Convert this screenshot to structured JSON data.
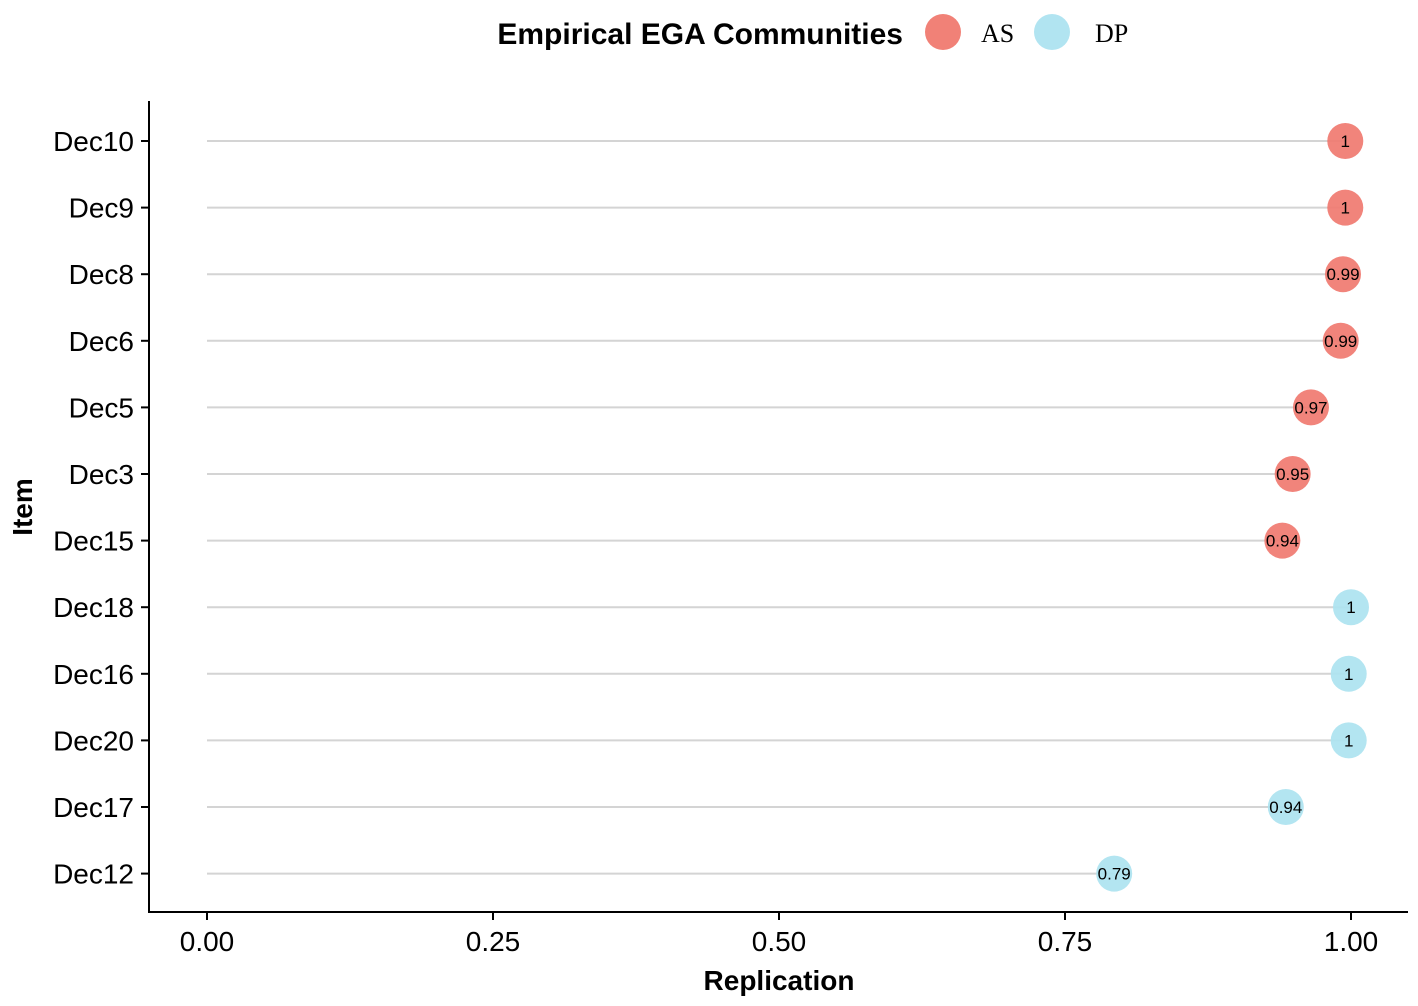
{
  "chart_data": {
    "type": "scatter",
    "style": "lollipop",
    "title": "",
    "xlabel": "Replication",
    "ylabel": "Item",
    "xlim": [
      0,
      1
    ],
    "xticks": [
      "0.00",
      "0.25",
      "0.50",
      "0.75",
      "1.00"
    ],
    "grid": false,
    "legend": {
      "title": "Empirical EGA Communities",
      "position": "top",
      "entries": [
        {
          "name": "AS",
          "color": "#F07A70"
        },
        {
          "name": "DP",
          "color": "#ADE3F0"
        }
      ]
    },
    "points": [
      {
        "item": "Dec10",
        "value": 0.995,
        "label": "1",
        "community": "AS"
      },
      {
        "item": "Dec9",
        "value": 0.995,
        "label": "1",
        "community": "AS"
      },
      {
        "item": "Dec8",
        "value": 0.993,
        "label": "0.99",
        "community": "AS"
      },
      {
        "item": "Dec6",
        "value": 0.991,
        "label": "0.99",
        "community": "AS"
      },
      {
        "item": "Dec5",
        "value": 0.965,
        "label": "0.97",
        "community": "AS"
      },
      {
        "item": "Dec3",
        "value": 0.949,
        "label": "0.95",
        "community": "AS"
      },
      {
        "item": "Dec15",
        "value": 0.94,
        "label": "0.94",
        "community": "AS"
      },
      {
        "item": "Dec18",
        "value": 1.0,
        "label": "1",
        "community": "DP"
      },
      {
        "item": "Dec16",
        "value": 0.998,
        "label": "1",
        "community": "DP"
      },
      {
        "item": "Dec20",
        "value": 0.998,
        "label": "1",
        "community": "DP"
      },
      {
        "item": "Dec17",
        "value": 0.943,
        "label": "0.94",
        "community": "DP"
      },
      {
        "item": "Dec12",
        "value": 0.793,
        "label": "0.79",
        "community": "DP"
      }
    ]
  }
}
